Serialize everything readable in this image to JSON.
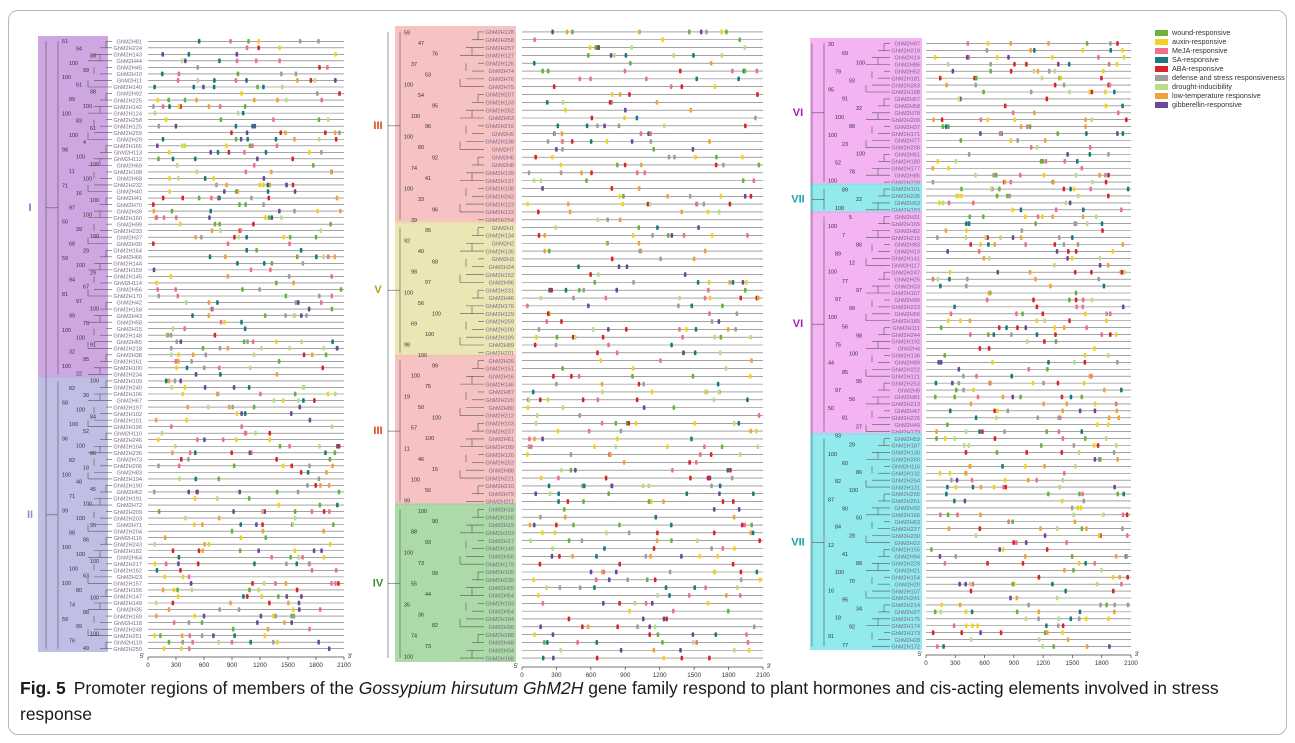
{
  "caption": {
    "fig_no": "Fig. 5",
    "text_a": "Promoter regions of members of the",
    "species": "Gossypium hirsutum GhM2H",
    "text_b": "gene family respond to plant hormones and cis-acting elements involved in stress response"
  },
  "legend": [
    {
      "label": "wound-responsive",
      "color": "#6ab23e"
    },
    {
      "label": "auxin-responsive",
      "color": "#f2d21c"
    },
    {
      "label": "MeJA-responsive",
      "color": "#ee6f8e"
    },
    {
      "label": "SA-responsive",
      "color": "#1a7a7e"
    },
    {
      "label": "ABA-responsive",
      "color": "#d7262b"
    },
    {
      "label": "defense and stress responsiveness",
      "color": "#9e9e9e"
    },
    {
      "label": "drought-inducibility",
      "color": "#b9dc86"
    },
    {
      "label": "low-temperature responsive",
      "color": "#f0a33a"
    },
    {
      "label": "gibberellin-responsive",
      "color": "#6a4a96"
    }
  ],
  "axis": {
    "ticks": [
      "0",
      "300",
      "600",
      "900",
      "1200",
      "1500",
      "1800",
      "2100"
    ],
    "start_label": "5'",
    "end_label": "3'"
  },
  "chart_data": {
    "type": "phylogenetic-tree-with-promoter-elements",
    "x_unit": "bp upstream",
    "xlim": [
      0,
      2100
    ],
    "panels": [
      {
        "groups": [
          {
            "label": "I",
            "color": "#c696dc",
            "genes": [
              "GhM2H81",
              "GhM2H224",
              "GhM2H143",
              "GhM2H44",
              "GhM2H45",
              "GhM2H10",
              "GhM2H11",
              "GhM2H140",
              "GhM2H92",
              "GhM2H225",
              "GhM2H142",
              "GhM2H124",
              "GhM2H258",
              "GhM2H125",
              "GhM2H259",
              "GhM2H29",
              "GhM2H165",
              "GhM2H113",
              "GhM2H112",
              "GhM2H69",
              "GhM2H198",
              "GhM2H68",
              "GhM2H232",
              "GhM2H40",
              "GhM2H41",
              "GhM2H70",
              "GhM2H39",
              "GhM2H160",
              "GhM2H99",
              "GhM2H233",
              "GhM2H37",
              "GhM2H30",
              "GhM2H164",
              "GhM2H66",
              "GhM2H144",
              "GhM2H159",
              "GhM2H145",
              "GhM2H114",
              "GhM2H56",
              "GhM2H170",
              "GhM2H42",
              "GhM2H158",
              "GhM2H43",
              "GhM2H58",
              "GhM2H15",
              "GhM2H148",
              "GhM2H65",
              "GhM2H218",
              "GhM2H38",
              "GhM2H161",
              "GhM2H100",
              "GhM2H234"
            ]
          },
          {
            "label": "II",
            "color": "#b4b4e0",
            "genes": [
              "GhM2H109",
              "GhM2H240",
              "GhM2H106",
              "GhM2H67",
              "GhM2H197",
              "GhM2H102",
              "GhM2H101",
              "GhM2H196",
              "GhM2H110",
              "GhM2H246",
              "GhM2H104",
              "GhM2H236",
              "GhM2H73",
              "GhM2H206",
              "GhM2H83",
              "GhM2H194",
              "GhM2H190",
              "GhM2H62",
              "GhM2H191",
              "GhM2H72",
              "GhM2H209",
              "GhM2H203",
              "GhM2H71",
              "GhM2H204",
              "GhM2H116",
              "GhM2H243",
              "GhM2H182",
              "GhM2H64",
              "GhM2H217",
              "GhM2H162",
              "GhM2H23",
              "GhM2H157",
              "GhM2H156",
              "GhM2H147",
              "GhM2H149",
              "GhM2H35",
              "GhM2H169",
              "GhM2H118",
              "GhM2H248",
              "GhM2H251",
              "GhM2H119",
              "GhM2H250"
            ]
          }
        ],
        "bootstraps": [
          "61",
          "94",
          "88",
          "100",
          "99",
          "100",
          "61",
          "98",
          "89",
          "100",
          "100",
          "83",
          "61",
          "100",
          "4",
          "98",
          "100",
          "100",
          "11",
          "100",
          "71",
          "16",
          "100",
          "97",
          "100",
          "50",
          "39",
          "100",
          "68",
          "29",
          "59",
          "100",
          "29",
          "94",
          "67",
          "81",
          "97",
          "100",
          "99",
          "75",
          "100",
          "100",
          "91",
          "32",
          "95",
          "100",
          "22",
          "100",
          "82",
          "30",
          "58",
          "100",
          "84",
          "100",
          "52",
          "96",
          "100",
          "86",
          "82",
          "18",
          "100",
          "48",
          "45",
          "71",
          "100",
          "99",
          "100",
          "95",
          "88",
          "86",
          "100",
          "100",
          "100",
          "100",
          "63",
          "100",
          "80",
          "100",
          "74",
          "88",
          "59",
          "99",
          "100",
          "76",
          "49"
        ]
      },
      {
        "groups": [
          {
            "label": "III",
            "color": "#f6b7b7",
            "genes": [
              "GhM2H128",
              "GhM2H258",
              "GhM2H257",
              "GhM2H127",
              "GhM2H126",
              "GhM2H74",
              "GhM2H76",
              "GhM2H75",
              "GhM2H207",
              "GhM2H133",
              "GhM2H262",
              "GhM2H63",
              "GhM2H216",
              "GhM2H5",
              "GhM2H138",
              "GhM2H7",
              "GhM2H6",
              "GhM2H8",
              "GhM2H139",
              "GhM2H137",
              "GhM2H108",
              "GhM2H242",
              "GhM2H123",
              "GhM2H122",
              "GhM2H254"
            ]
          },
          {
            "label": "V",
            "color": "#e8e3a8",
            "genes": [
              "GhM2H1",
              "GhM2H134",
              "GhM2H2",
              "GhM2H135",
              "GhM2H3",
              "GhM2H24",
              "GhM2H152",
              "GhM2H96",
              "GhM2H231",
              "GhM2H46",
              "GhM2H176",
              "GhM2H129",
              "GhM2H259",
              "GhM2H200",
              "GhM2H189",
              "GhM2H89",
              "GhM2H201"
            ]
          },
          {
            "label": "III",
            "color": "#f6b7b7",
            "genes": [
              "GhM2H26",
              "GhM2H151",
              "GhM2H16",
              "GhM2H146",
              "GhM2H87",
              "GhM2H220",
              "GhM2H80",
              "GhM2H212",
              "GhM2H103",
              "GhM2H237",
              "GhM2H61",
              "GhM2H189",
              "GhM2H120",
              "GhM2H252",
              "GhM2H88",
              "GhM2H221",
              "GhM2H210",
              "GhM2H79",
              "GhM2H211"
            ]
          },
          {
            "label": "IV",
            "color": "#9ed39a",
            "genes": [
              "GhM2H18",
              "GhM2H150",
              "GhM2H19",
              "GhM2H153",
              "GhM2H17",
              "GhM2H149",
              "GhM2H50",
              "GhM2H179",
              "GhM2H105",
              "GhM2H239",
              "GhM2H55",
              "GhM2H54",
              "GhM2H193",
              "GhM2H54",
              "GhM2H184",
              "GhM2H90",
              "GhM2H188",
              "GhM2H48",
              "GhM2H34",
              "GhM2H168"
            ]
          }
        ],
        "bootstraps": [
          "59",
          "47",
          "76",
          "37",
          "53",
          "100",
          "54",
          "95",
          "100",
          "96",
          "100",
          "80",
          "92",
          "74",
          "41",
          "100",
          "33",
          "96",
          "39",
          "95",
          "92",
          "40",
          "68",
          "98",
          "97",
          "100",
          "56",
          "100",
          "69",
          "100",
          "98",
          "100",
          "99",
          "100",
          "75",
          "19",
          "50",
          "100",
          "57",
          "100",
          "11",
          "46",
          "15",
          "100",
          "56",
          "99",
          "100",
          "90",
          "88",
          "93",
          "100",
          "73",
          "99",
          "55",
          "44",
          "35",
          "36",
          "82",
          "74",
          "73",
          "100"
        ]
      },
      {
        "groups": [
          {
            "label": "VI",
            "color": "#f2a6f0",
            "genes": [
              "GhM2H97",
              "GhM2H219",
              "GhM2H14",
              "GhM2H86",
              "GhM2H52",
              "GhM2H181",
              "GhM2H263",
              "GhM2H188",
              "GhM2H57",
              "GhM2H58",
              "GhM2H78",
              "GhM2H209",
              "GhM2H37",
              "GhM2H171",
              "GhM2H77",
              "GhM2H208",
              "GhM2H51",
              "GhM2H180",
              "GhM2H177",
              "GhM2H85",
              "GhM2H228"
            ]
          },
          {
            "label": "VII",
            "color": "#7fe6ea",
            "genes": [
              "GhM2H101",
              "GhM2H235",
              "GhM2H53",
              "GhM2H183"
            ]
          },
          {
            "label": "VI",
            "color": "#f2a6f0",
            "genes": [
              "GhM2H31",
              "GhM2H165",
              "GhM2H82",
              "GhM2H215",
              "GhM2H83",
              "GhM2H13",
              "GhM2H141",
              "GhM2H117",
              "GhM2H247",
              "GhM2H25",
              "GhM2H33",
              "GhM2H167",
              "GhM2H90",
              "GhM2H223",
              "GhM2H56",
              "GhM2H185",
              "GhM2H111",
              "GhM2H244",
              "GhM2H192",
              "GhM2H4",
              "GhM2H136",
              "GhM2H89",
              "GhM2H222",
              "GhM2H121",
              "GhM2H253",
              "GhM2H9",
              "GhM2H81",
              "GhM2H213",
              "GhM2H47",
              "GhM2H226",
              "GhM2H49",
              "GhM2H179"
            ]
          },
          {
            "label": "VII",
            "color": "#7fe6ea",
            "genes": [
              "GhM2H59",
              "GhM2H187",
              "GhM2H130",
              "GhM2H260",
              "GhM2H116",
              "GhM2H132",
              "GhM2H264",
              "GhM2H131",
              "GhM2H265",
              "GhM2H261",
              "GhM2H32",
              "GhM2H166",
              "GhM2H63",
              "GhM2H227",
              "GhM2H230",
              "GhM2H22",
              "GhM2H155",
              "GhM2H94",
              "GhM2H229",
              "GhM2H21",
              "GhM2H154",
              "GhM2H20",
              "GhM2H107",
              "GhM2H241",
              "GhM2H214",
              "GhM2H27",
              "GhM2H175",
              "GhM2H174",
              "GhM2H173",
              "GhM2H28",
              "GhM2H172"
            ]
          }
        ],
        "bootstraps": [
          "30",
          "69",
          "100",
          "79",
          "93",
          "95",
          "91",
          "32",
          "100",
          "88",
          "100",
          "23",
          "100",
          "52",
          "78",
          "100",
          "89",
          "22",
          "100",
          "5",
          "100",
          "7",
          "86",
          "89",
          "12",
          "100",
          "77",
          "97",
          "97",
          "99",
          "100",
          "56",
          "98",
          "75",
          "100",
          "44",
          "85",
          "95",
          "97",
          "56",
          "50",
          "81",
          "27",
          "93",
          "29",
          "100",
          "60",
          "86",
          "82",
          "100",
          "87",
          "90",
          "50",
          "84",
          "28",
          "12",
          "41",
          "88",
          "100",
          "70",
          "16",
          "95",
          "34",
          "18",
          "92",
          "91",
          "77"
        ]
      }
    ]
  }
}
